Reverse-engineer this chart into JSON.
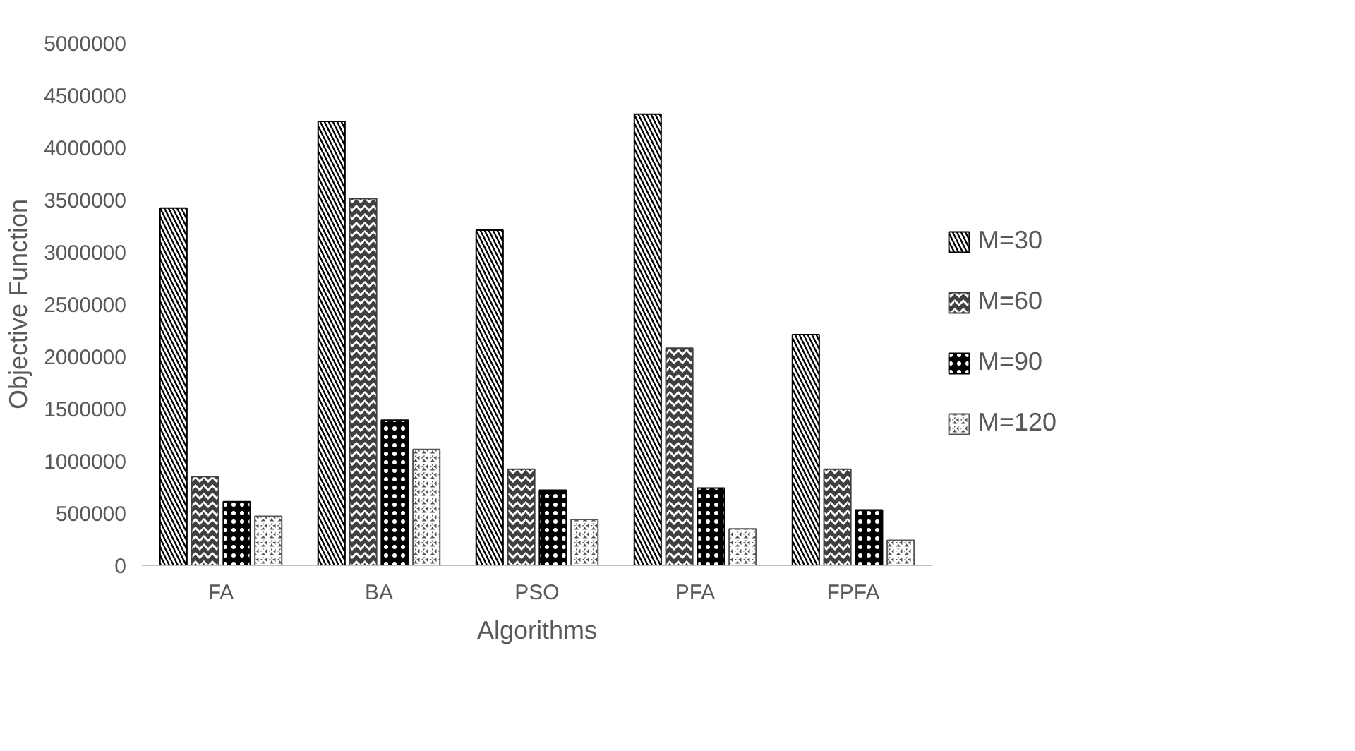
{
  "chart_data": {
    "type": "bar",
    "xlabel": "Algorithms",
    "ylabel": "Objective Function",
    "categories": [
      "FA",
      "BA",
      "PSO",
      "PFA",
      "FPFA"
    ],
    "series": [
      {
        "name": "M=30",
        "color": "#000000",
        "values": [
          3420000,
          4250000,
          3210000,
          4320000,
          2210000
        ]
      },
      {
        "name": "M=60",
        "color": "#404040",
        "values": [
          850000,
          3510000,
          920000,
          2080000,
          920000
        ]
      },
      {
        "name": "M=90",
        "color": "#000000",
        "values": [
          610000,
          1390000,
          720000,
          740000,
          530000
        ]
      },
      {
        "name": "M=120",
        "color": "#555555",
        "values": [
          470000,
          1110000,
          440000,
          350000,
          240000
        ]
      }
    ],
    "ylim": [
      0,
      5000000
    ],
    "yticks": [
      0,
      500000,
      1000000,
      1500000,
      2000000,
      2500000,
      3000000,
      3500000,
      4000000,
      4500000,
      5000000
    ],
    "grid": false,
    "legend": "right"
  }
}
